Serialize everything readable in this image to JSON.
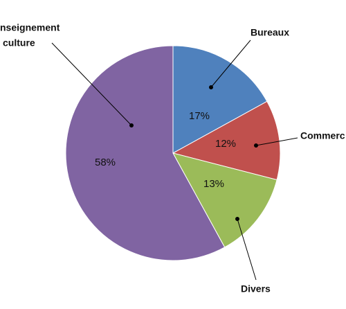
{
  "chart_data": {
    "type": "pie",
    "categories": [
      "Bureaux",
      "Commerc",
      "Divers",
      [
        "nseignement",
        "culture"
      ]
    ],
    "values": [
      17,
      12,
      13,
      58
    ],
    "value_labels": [
      "17%",
      "12%",
      "13%",
      "58%"
    ],
    "colors": [
      "#4f81bd",
      "#c0504d",
      "#9bbb59",
      "#8064a2"
    ]
  }
}
